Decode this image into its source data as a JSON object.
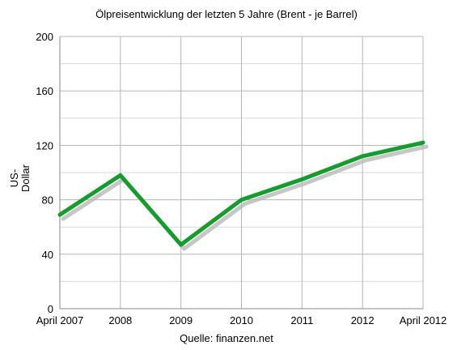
{
  "chart_data": {
    "type": "line",
    "title": "Ölpreisentwicklung der letzten 5 Jahre (Brent - je Barrel)",
    "ylabel": "US-Dollar",
    "ylabel_lines": [
      "US-",
      "Dollar"
    ],
    "xlabel": "",
    "source": "Quelle: finanzen.net",
    "categories": [
      "April 2007",
      "2008",
      "2009",
      "2010",
      "2011",
      "2012",
      "April 2012"
    ],
    "series": [
      {
        "values": [
          69,
          98,
          47,
          80,
          95,
          112,
          122
        ],
        "color": "#129e2b"
      }
    ],
    "ylim": [
      0,
      200
    ],
    "yticks": [
      "0",
      "40",
      "80",
      "120",
      "160",
      "200"
    ],
    "grid": true,
    "shadow_color": "#b9b9b9"
  }
}
